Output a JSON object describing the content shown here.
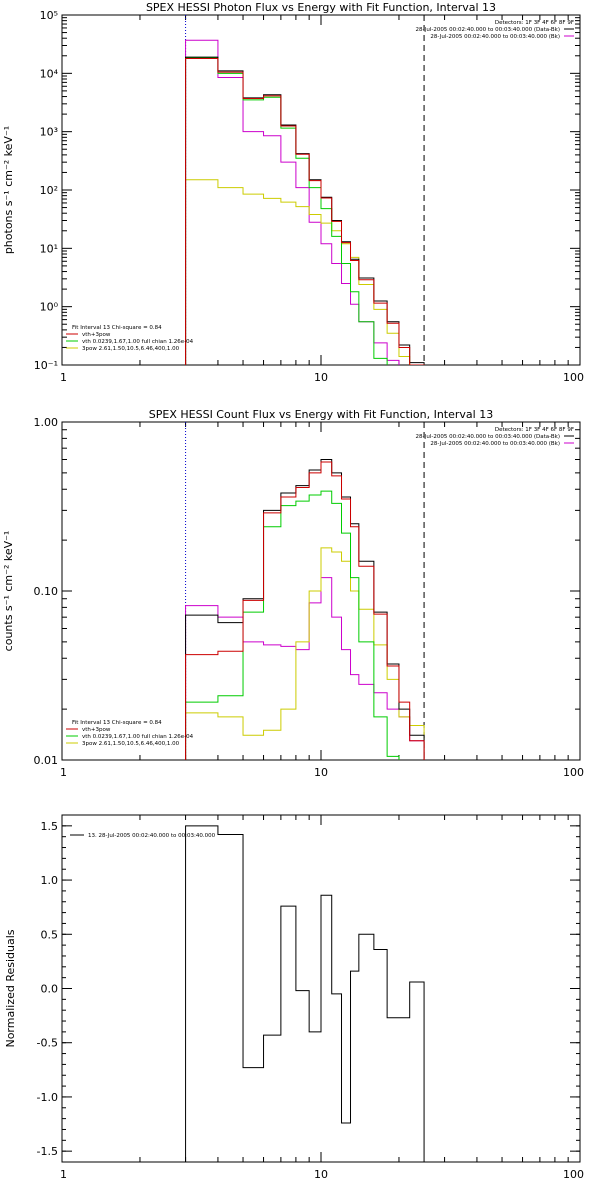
{
  "chart_data": [
    {
      "type": "line",
      "title": "SPEX HESSI Photon Flux vs Energy with Fit Function, Interval 13",
      "ylabel": "photons s⁻¹ cm⁻² keV⁻¹",
      "xlabel": "",
      "x_scale": "log",
      "y_scale": "log",
      "xlim": [
        1,
        100
      ],
      "ylim": [
        0.1,
        100000
      ],
      "x_tick_labels": [
        "1",
        "10",
        "100"
      ],
      "y_tick_labels": [
        "10⁵",
        "10⁴",
        "10³",
        "10²",
        "10¹",
        "10⁰",
        "10⁻¹"
      ],
      "vlines": [
        {
          "x": 3.0,
          "style": "dotted",
          "color": "#0000cc"
        },
        {
          "x": 25.0,
          "style": "dashed",
          "color": "#000000"
        }
      ],
      "header_lines": [
        "Detectors: 1F 3F 4F 6F 8F 9F",
        "28-Jul-2005 00:02:40.000 to 00:03:40.000 (Data-Bk)",
        "28-Jul-2005 00:02:40.000 to 00:03:40.000 (Bk)"
      ],
      "fit_lines": [
        "Fit Interval 13   Chi-square = 0.84",
        "vth+3pow",
        "vth 0.0239,1.67,1.00  full chian 1.26e-04",
        "3pow 2.61,1.50,10.5,6.46,400,1.00"
      ],
      "bin_edges": [
        3,
        4,
        5,
        6,
        7,
        8,
        9,
        10,
        11,
        12,
        13,
        14,
        16,
        18,
        20,
        22,
        25
      ],
      "series": [
        {
          "name": "28-Jul-2005 00:02:40.000 to 00:03:40.000 (Data-Bk)",
          "color": "#000000",
          "values": [
            19000,
            11000,
            3800,
            4300,
            1300,
            420,
            150,
            75,
            30,
            13,
            6.5,
            3.1,
            1.25,
            0.55,
            0.22,
            0.11
          ]
        },
        {
          "name": "28-Jul-2005 00:02:40.000 to 00:03:40.000 (Bk)",
          "color": "#cc00cc",
          "values": [
            37000,
            8500,
            1000,
            850,
            300,
            110,
            28,
            12,
            5.5,
            2.5,
            1.1,
            0.55,
            0.24,
            0.12
          ]
        },
        {
          "name": "vth+3pow",
          "color": "#cc0000",
          "values": [
            18000,
            10500,
            3700,
            4100,
            1250,
            410,
            145,
            73,
            29,
            12.5,
            6.2,
            2.9,
            1.15,
            0.52,
            0.2,
            0.1
          ]
        },
        {
          "name": "vth 0.0239,1.67,1.00  full chian 1.26e-04",
          "color": "#00cc00",
          "values": [
            18500,
            10000,
            3500,
            3900,
            1150,
            350,
            110,
            48,
            16,
            5.5,
            1.8,
            0.55,
            0.13
          ]
        },
        {
          "name": "3pow 2.61,1.50,10.5,6.46,400,1.00",
          "color": "#cccc00",
          "values": [
            150,
            110,
            85,
            72,
            62,
            52,
            38,
            27,
            20,
            12,
            7,
            2.4,
            0.9,
            0.35,
            0.14,
            0.1
          ]
        }
      ]
    },
    {
      "type": "line",
      "title": "SPEX HESSI Count Flux vs Energy with Fit Function, Interval 13",
      "ylabel": "counts s⁻¹ cm⁻² keV⁻¹",
      "xlabel": "",
      "x_scale": "log",
      "y_scale": "log",
      "xlim": [
        1,
        100
      ],
      "ylim": [
        0.01,
        1.0
      ],
      "x_tick_labels": [
        "1",
        "10",
        "100"
      ],
      "y_tick_labels": [
        "1.00",
        "0.10",
        "0.01"
      ],
      "vlines": [
        {
          "x": 3.0,
          "style": "dotted",
          "color": "#0000cc"
        },
        {
          "x": 25.0,
          "style": "dashed",
          "color": "#000000"
        }
      ],
      "header_lines": [
        "Detectors: 1F 3F 4F 6F 8F 9F",
        "28-Jul-2005 00:02:40.000 to 00:03:40.000 (Data-Bk)",
        "28-Jul-2005 00:02:40.000 to 00:03:40.000 (Bk)"
      ],
      "fit_lines": [
        "Fit Interval 13   Chi-square = 0.84",
        "vth+3pow",
        "vth 0.0239,1.67,1.00  full chian 1.26e-04",
        "3pow 2.61,1.50,10.5,6.46,400,1.00"
      ],
      "bin_edges": [
        3,
        4,
        5,
        6,
        7,
        8,
        9,
        10,
        11,
        12,
        13,
        14,
        16,
        18,
        20,
        22,
        25
      ],
      "series": [
        {
          "name": "28-Jul-2005 00:02:40.000 to 00:03:40.000 (Data-Bk)",
          "color": "#000000",
          "values": [
            0.072,
            0.065,
            0.09,
            0.3,
            0.38,
            0.42,
            0.52,
            0.6,
            0.5,
            0.36,
            0.25,
            0.15,
            0.075,
            0.037,
            0.02,
            0.014
          ]
        },
        {
          "name": "28-Jul-2005 00:02:40.000 to 00:03:40.000 (Bk)",
          "color": "#cc00cc",
          "values": [
            0.082,
            0.07,
            0.05,
            0.048,
            0.047,
            0.045,
            0.085,
            0.12,
            0.07,
            0.045,
            0.032,
            0.028,
            0.025,
            0.02,
            0.018,
            0.013
          ]
        },
        {
          "name": "vth+3pow",
          "color": "#cc0000",
          "values": [
            0.042,
            0.044,
            0.088,
            0.29,
            0.36,
            0.41,
            0.5,
            0.58,
            0.48,
            0.35,
            0.24,
            0.14,
            0.073,
            0.036,
            0.022,
            0.013
          ]
        },
        {
          "name": "vth 0.0239,1.67,1.00  full chian 1.26e-04",
          "color": "#00cc00",
          "values": [
            0.022,
            0.024,
            0.075,
            0.24,
            0.32,
            0.34,
            0.37,
            0.39,
            0.33,
            0.22,
            0.12,
            0.05,
            0.018,
            0.0105,
            0.008
          ]
        },
        {
          "name": "3pow 2.61,1.50,10.5,6.46,400,1.00",
          "color": "#cccc00",
          "values": [
            0.019,
            0.018,
            0.014,
            0.015,
            0.02,
            0.05,
            0.1,
            0.18,
            0.17,
            0.15,
            0.1,
            0.078,
            0.048,
            0.03,
            0.018,
            0.016
          ]
        }
      ]
    },
    {
      "type": "line",
      "title": "",
      "ylabel": "Normalized Residuals",
      "xlabel": "",
      "x_scale": "log",
      "y_scale": "linear",
      "xlim": [
        1,
        100
      ],
      "ylim": [
        -1.6,
        1.6
      ],
      "x_tick_labels": [
        "1",
        "10",
        "100"
      ],
      "y_ticks": [
        1.5,
        1.0,
        0.5,
        0.0,
        -0.5,
        -1.0,
        -1.5
      ],
      "y_tick_labels": [
        "1.5",
        "1.0",
        "0.5",
        "0.0",
        "-0.5",
        "-1.0",
        "-1.5"
      ],
      "legend_text": "13. 28-Jul-2005 00:02:40.000 to 00:03:40.000",
      "bin_edges": [
        3,
        4,
        5,
        6,
        7,
        8,
        9,
        10,
        11,
        12,
        13,
        14,
        16,
        18,
        20,
        22,
        25
      ],
      "series": [
        {
          "color": "#000000",
          "values": [
            1.5,
            1.42,
            -0.73,
            -0.43,
            0.76,
            -0.02,
            -0.4,
            0.86,
            -0.05,
            -1.24,
            0.16,
            0.5,
            0.36,
            -0.27,
            -0.27,
            0.06
          ]
        }
      ]
    }
  ]
}
